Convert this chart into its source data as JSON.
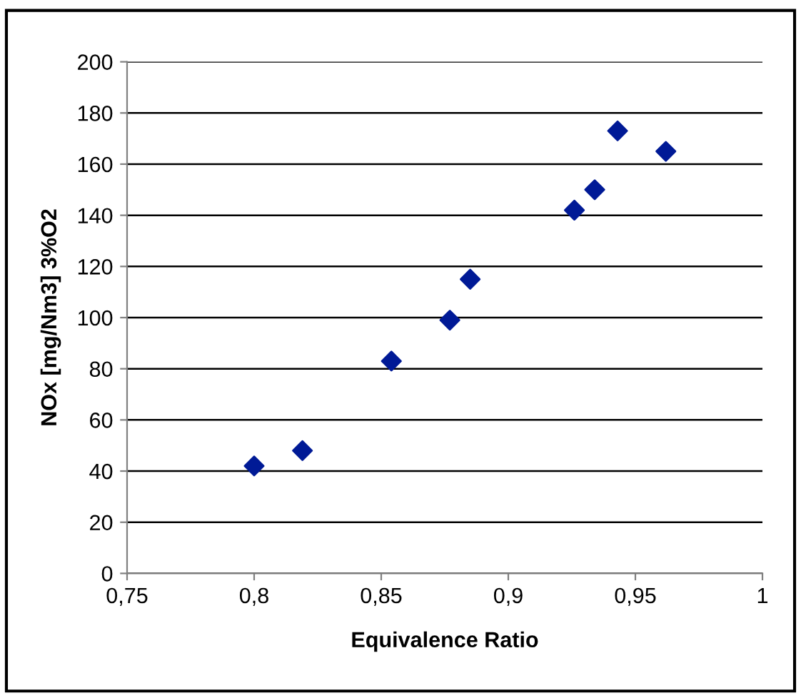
{
  "chart_data": {
    "type": "scatter",
    "xlabel": "Equivalence Ratio",
    "ylabel": "NOx [mg/Nm3] 3%O2",
    "x": [
      0.8,
      0.819,
      0.854,
      0.877,
      0.885,
      0.926,
      0.934,
      0.943,
      0.962
    ],
    "series": [
      {
        "color": "#001a96",
        "values": [
          42,
          48,
          83,
          99,
          115,
          142,
          150,
          173,
          165
        ]
      }
    ],
    "xlim": [
      0.75,
      1
    ],
    "xticks": [
      {
        "value": 0.75,
        "label": "0,75"
      },
      {
        "value": 0.8,
        "label": "0,8"
      },
      {
        "value": 0.85,
        "label": "0,85"
      },
      {
        "value": 0.9,
        "label": "0,9"
      },
      {
        "value": 0.95,
        "label": "0,95"
      },
      1
    ],
    "ylim": [
      0,
      200
    ],
    "yticks": [
      0,
      20,
      40,
      60,
      80,
      100,
      120,
      140,
      160,
      180,
      200
    ],
    "grid": "y",
    "marker": "diamond",
    "legend": false
  }
}
